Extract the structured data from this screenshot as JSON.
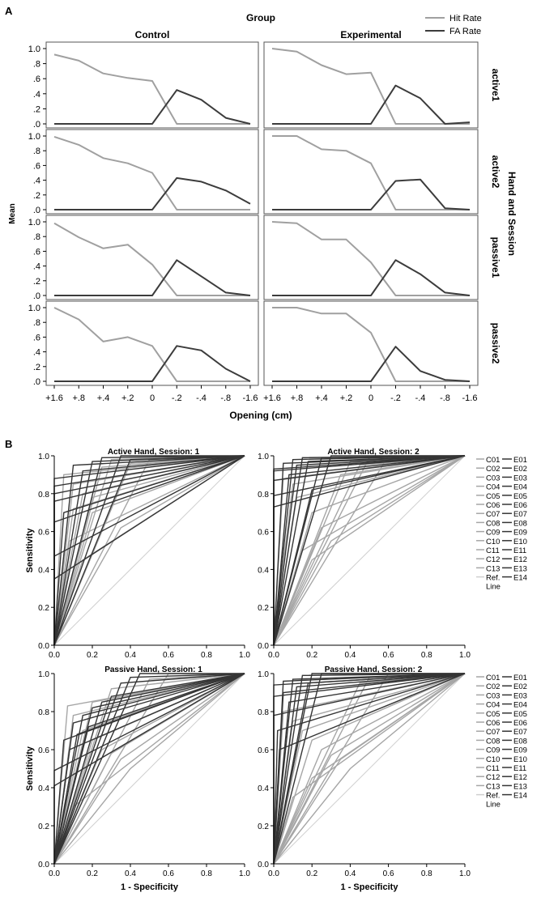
{
  "panel_labels": {
    "a": "A",
    "b": "B"
  },
  "colors": {
    "hit": "#a0a0a0",
    "fa": "#3c3c3c",
    "control_roc": "#a6a6a6",
    "experimental_roc": "#353535",
    "ref": "#cfcfcf"
  },
  "chart_data": [
    {
      "type": "line",
      "title": "Group",
      "xlabel": "Opening (cm)",
      "ylabel": "Mean",
      "row_axis_title": "Hand and Session",
      "x": [
        "+1.6",
        "+.8",
        "+.4",
        "+.2",
        "0",
        "-.2",
        "-.4",
        "-.8",
        "-1.6"
      ],
      "yticks": [
        "0",
        ".2",
        ".4",
        ".6",
        ".8",
        "1.0"
      ],
      "ylim": [
        0,
        1
      ],
      "legend": {
        "position": "top-right",
        "entries": [
          "Hit Rate",
          "FA Rate"
        ]
      },
      "columns": [
        "Control",
        "Experimental"
      ],
      "rows": [
        "active1",
        "active2",
        "passive1",
        "passive2"
      ],
      "panels": [
        {
          "row": 0,
          "col": 0,
          "series": [
            {
              "name": "Hit Rate",
              "values": [
                0.92,
                0.84,
                0.67,
                0.61,
                0.57,
                0.0,
                0.0,
                0.0,
                0.0
              ]
            },
            {
              "name": "FA Rate",
              "values": [
                0,
                0,
                0,
                0,
                0,
                0.45,
                0.32,
                0.08,
                0.0
              ]
            }
          ]
        },
        {
          "row": 0,
          "col": 1,
          "series": [
            {
              "name": "Hit Rate",
              "values": [
                1.0,
                0.96,
                0.78,
                0.66,
                0.68,
                0.0,
                0.0,
                0.0,
                0.0
              ]
            },
            {
              "name": "FA Rate",
              "values": [
                0,
                0,
                0,
                0,
                0,
                0.51,
                0.34,
                0.0,
                0.02
              ]
            }
          ]
        },
        {
          "row": 1,
          "col": 0,
          "series": [
            {
              "name": "Hit Rate",
              "values": [
                0.99,
                0.88,
                0.7,
                0.63,
                0.5,
                0.0,
                0.0,
                0.0,
                0.0
              ]
            },
            {
              "name": "FA Rate",
              "values": [
                0,
                0,
                0,
                0,
                0,
                0.43,
                0.38,
                0.26,
                0.08
              ]
            }
          ]
        },
        {
          "row": 1,
          "col": 1,
          "series": [
            {
              "name": "Hit Rate",
              "values": [
                1.0,
                1.0,
                0.82,
                0.8,
                0.63,
                0.0,
                0.0,
                0.0,
                0.0
              ]
            },
            {
              "name": "FA Rate",
              "values": [
                0,
                0,
                0,
                0,
                0,
                0.39,
                0.41,
                0.02,
                0.0
              ]
            }
          ]
        },
        {
          "row": 2,
          "col": 0,
          "series": [
            {
              "name": "Hit Rate",
              "values": [
                0.98,
                0.79,
                0.64,
                0.69,
                0.42,
                0.0,
                0.0,
                0.0,
                0.0
              ]
            },
            {
              "name": "FA Rate",
              "values": [
                0,
                0,
                0,
                0,
                0,
                0.48,
                0.26,
                0.04,
                0.0
              ]
            }
          ]
        },
        {
          "row": 2,
          "col": 1,
          "series": [
            {
              "name": "Hit Rate",
              "values": [
                1.0,
                0.98,
                0.76,
                0.76,
                0.45,
                0.0,
                0.0,
                0.0,
                0.0
              ]
            },
            {
              "name": "FA Rate",
              "values": [
                0,
                0,
                0,
                0,
                0,
                0.48,
                0.29,
                0.04,
                0.0
              ]
            }
          ]
        },
        {
          "row": 3,
          "col": 0,
          "series": [
            {
              "name": "Hit Rate",
              "values": [
                1.0,
                0.84,
                0.54,
                0.6,
                0.48,
                0.0,
                0.0,
                0.0,
                0.0
              ]
            },
            {
              "name": "FA Rate",
              "values": [
                0,
                0,
                0,
                0,
                0,
                0.48,
                0.42,
                0.17,
                0.0
              ]
            }
          ]
        },
        {
          "row": 3,
          "col": 1,
          "series": [
            {
              "name": "Hit Rate",
              "values": [
                1.0,
                1.0,
                0.92,
                0.92,
                0.66,
                0.0,
                0.0,
                0.0,
                0.0
              ]
            },
            {
              "name": "FA Rate",
              "values": [
                0,
                0,
                0,
                0,
                0,
                0.47,
                0.14,
                0.02,
                0.0
              ]
            }
          ]
        }
      ]
    },
    {
      "type": "line",
      "subtype": "roc",
      "xlabel": "1 - Specificity",
      "ylabel": "Sensitivity",
      "xticks": [
        "0.0",
        "0.2",
        "0.4",
        "0.6",
        "0.8",
        "1.0"
      ],
      "yticks": [
        "0.0",
        "0.2",
        "0.4",
        "0.6",
        "0.8",
        "1.0"
      ],
      "xlim": [
        0,
        1
      ],
      "ylim": [
        0,
        1
      ],
      "legend": {
        "position": "right",
        "control": [
          "C01",
          "C02",
          "C03",
          "C04",
          "C05",
          "C06",
          "C07",
          "C08",
          "C09",
          "C10",
          "C11",
          "C12",
          "C13"
        ],
        "experimental": [
          "E01",
          "E02",
          "E03",
          "E04",
          "E05",
          "E06",
          "E07",
          "E08",
          "E09",
          "E10",
          "E11",
          "E12",
          "E13",
          "E14"
        ],
        "ref_label": [
          "Ref.",
          "Line"
        ]
      },
      "panels": [
        {
          "title": "Active Hand, Session: 1",
          "control": [
            [
              0.05,
              0.9
            ],
            [
              0.1,
              0.85
            ],
            [
              0.15,
              0.8
            ],
            [
              0.2,
              0.78
            ],
            [
              0.1,
              0.72
            ],
            [
              0.25,
              0.94
            ],
            [
              0.3,
              0.98
            ],
            [
              0.35,
              0.62
            ],
            [
              0.08,
              0.55
            ],
            [
              0.4,
              0.96
            ],
            [
              0.15,
              0.45
            ],
            [
              0.5,
              0.98
            ],
            [
              0.2,
              0.7
            ]
          ],
          "experimental": [
            [
              0.1,
              0.95
            ],
            [
              0.2,
              0.97
            ],
            [
              0.0,
              0.88
            ],
            [
              0.0,
              0.84
            ],
            [
              0.0,
              0.8
            ],
            [
              0.0,
              0.76
            ],
            [
              0.0,
              0.65
            ],
            [
              0.0,
              0.47
            ],
            [
              0.0,
              0.35
            ],
            [
              0.15,
              0.92
            ],
            [
              0.25,
              0.99
            ],
            [
              0.35,
              1.0
            ],
            [
              0.4,
              0.98
            ],
            [
              0.05,
              0.7
            ]
          ]
        },
        {
          "title": "Active Hand, Session: 2",
          "control": [
            [
              0.05,
              0.88
            ],
            [
              0.1,
              0.85
            ],
            [
              0.12,
              0.78
            ],
            [
              0.2,
              0.7
            ],
            [
              0.25,
              0.62
            ],
            [
              0.3,
              0.55
            ],
            [
              0.4,
              0.97
            ],
            [
              0.5,
              0.99
            ],
            [
              0.6,
              1.0
            ],
            [
              0.15,
              0.5
            ],
            [
              0.2,
              0.45
            ],
            [
              0.35,
              0.9
            ],
            [
              0.45,
              0.95
            ]
          ],
          "experimental": [
            [
              0.0,
              0.93
            ],
            [
              0.0,
              0.92
            ],
            [
              0.0,
              0.87
            ],
            [
              0.0,
              0.79
            ],
            [
              0.0,
              0.73
            ],
            [
              0.05,
              0.96
            ],
            [
              0.1,
              0.98
            ],
            [
              0.15,
              0.99
            ],
            [
              0.2,
              0.82
            ],
            [
              0.25,
              0.99
            ],
            [
              0.3,
              1.0
            ],
            [
              0.08,
              0.9
            ],
            [
              0.12,
              0.95
            ],
            [
              0.18,
              0.97
            ]
          ]
        },
        {
          "title": "Passive Hand, Session: 1",
          "control": [
            [
              0.07,
              0.83
            ],
            [
              0.1,
              0.78
            ],
            [
              0.15,
              0.7
            ],
            [
              0.2,
              0.65
            ],
            [
              0.25,
              0.6
            ],
            [
              0.3,
              0.58
            ],
            [
              0.35,
              0.55
            ],
            [
              0.4,
              0.5
            ],
            [
              0.2,
              0.85
            ],
            [
              0.3,
              0.92
            ],
            [
              0.5,
              0.97
            ],
            [
              0.6,
              1.0
            ],
            [
              0.1,
              0.3
            ]
          ],
          "experimental": [
            [
              0.1,
              0.74
            ],
            [
              0.2,
              0.82
            ],
            [
              0.0,
              0.49
            ],
            [
              0.0,
              0.41
            ],
            [
              0.05,
              0.65
            ],
            [
              0.15,
              0.78
            ],
            [
              0.25,
              0.85
            ],
            [
              0.3,
              0.88
            ],
            [
              0.35,
              0.95
            ],
            [
              0.4,
              0.98
            ],
            [
              0.45,
              1.0
            ],
            [
              0.12,
              0.68
            ],
            [
              0.08,
              0.6
            ],
            [
              0.18,
              0.72
            ]
          ]
        },
        {
          "title": "Passive Hand, Session: 2",
          "control": [
            [
              0.05,
              0.8
            ],
            [
              0.1,
              0.75
            ],
            [
              0.15,
              0.7
            ],
            [
              0.2,
              0.65
            ],
            [
              0.25,
              0.6
            ],
            [
              0.3,
              0.57
            ],
            [
              0.35,
              0.55
            ],
            [
              0.4,
              0.5
            ],
            [
              0.45,
              0.95
            ],
            [
              0.5,
              0.98
            ],
            [
              0.6,
              1.0
            ],
            [
              0.1,
              0.35
            ],
            [
              0.2,
              0.45
            ]
          ],
          "experimental": [
            [
              0.0,
              0.94
            ],
            [
              0.0,
              0.88
            ],
            [
              0.0,
              0.78
            ],
            [
              0.05,
              0.96
            ],
            [
              0.1,
              0.97
            ],
            [
              0.15,
              0.99
            ],
            [
              0.2,
              1.0
            ],
            [
              0.05,
              0.9
            ],
            [
              0.08,
              0.85
            ],
            [
              0.12,
              0.93
            ],
            [
              0.18,
              0.95
            ],
            [
              0.25,
              1.0
            ],
            [
              0.02,
              0.7
            ],
            [
              0.03,
              0.6
            ]
          ]
        }
      ]
    }
  ]
}
